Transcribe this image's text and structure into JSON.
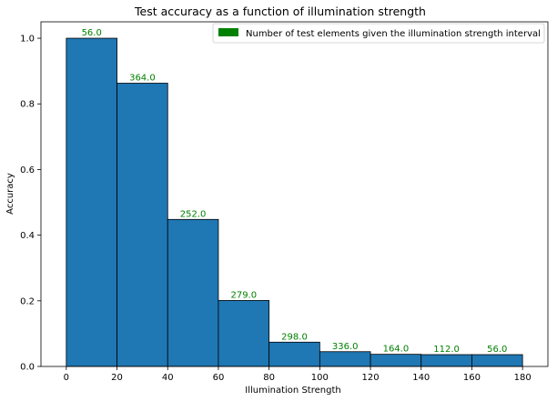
{
  "chart_data": {
    "type": "bar",
    "title": "Test accuracy as a function of illumination strength",
    "xlabel": "Illumination Strength",
    "ylabel": "Accuracy",
    "xlim": [
      -10,
      190
    ],
    "ylim": [
      0,
      1.05
    ],
    "xticks": [
      0,
      20,
      40,
      60,
      80,
      100,
      120,
      140,
      160,
      180
    ],
    "yticks": [
      0.0,
      0.2,
      0.4,
      0.6,
      0.8,
      1.0
    ],
    "bins": [
      {
        "start": 0,
        "end": 20,
        "accuracy": 1.0,
        "count_label": "56.0"
      },
      {
        "start": 20,
        "end": 40,
        "accuracy": 0.863,
        "count_label": "364.0"
      },
      {
        "start": 40,
        "end": 60,
        "accuracy": 0.448,
        "count_label": "252.0"
      },
      {
        "start": 60,
        "end": 80,
        "accuracy": 0.201,
        "count_label": "279.0"
      },
      {
        "start": 80,
        "end": 100,
        "accuracy": 0.074,
        "count_label": "298.0"
      },
      {
        "start": 100,
        "end": 120,
        "accuracy": 0.045,
        "count_label": "336.0"
      },
      {
        "start": 120,
        "end": 140,
        "accuracy": 0.037,
        "count_label": "164.0"
      },
      {
        "start": 140,
        "end": 160,
        "accuracy": 0.036,
        "count_label": "112.0"
      },
      {
        "start": 160,
        "end": 180,
        "accuracy": 0.036,
        "count_label": "56.0"
      }
    ],
    "legend": {
      "label": "Number of test elements given the illumination strength interval",
      "position": "top-right"
    },
    "grid": false
  },
  "colors": {
    "bar_fill": "#1f77b4",
    "bar_edge": "#000000",
    "count_text": "#008000",
    "legend_patch": "#008000"
  }
}
